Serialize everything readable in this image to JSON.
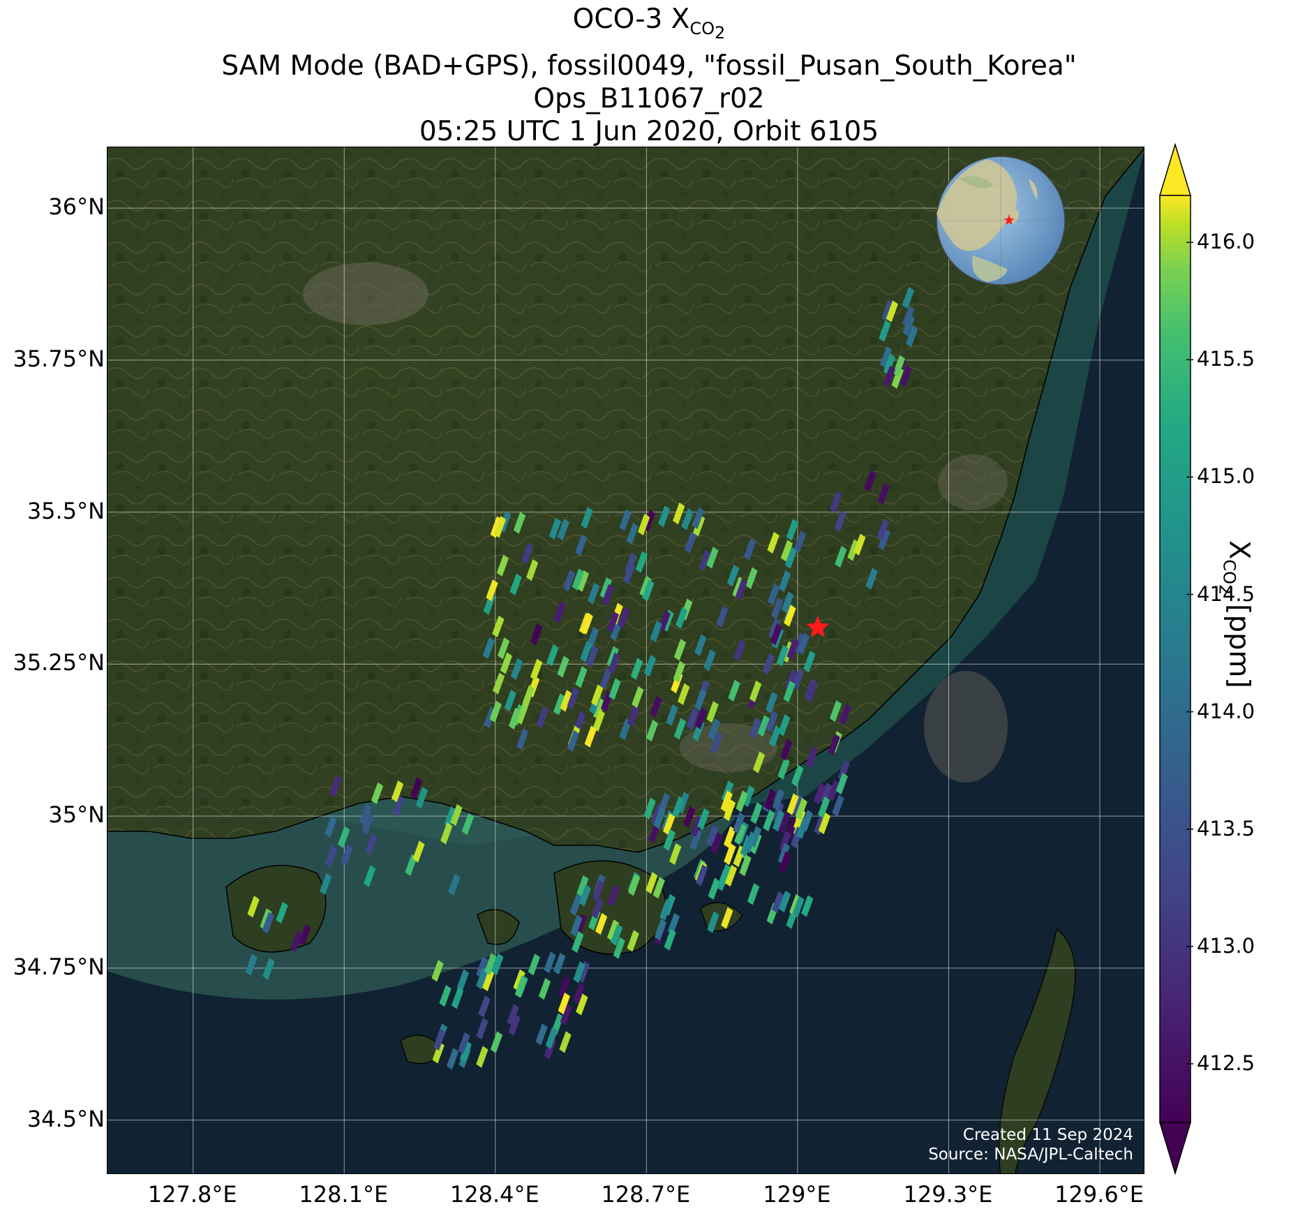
{
  "title": {
    "line1_prefix": "OCO-3 X",
    "line1_sub": "CO",
    "line1_subsub": "2",
    "line2": "SAM Mode (BAD+GPS), fossil0049, \"fossil_Pusan_South_Korea\"",
    "line3": "Ops_B11067_r02",
    "line4": "05:25 UTC 1 Jun 2020, Orbit 6105"
  },
  "map": {
    "lon_range": [
      127.63,
      129.69
    ],
    "lat_range": [
      34.41,
      36.1
    ],
    "lat_ticks": [
      {
        "value": 36.0,
        "label": "36°N"
      },
      {
        "value": 35.75,
        "label": "35.75°N"
      },
      {
        "value": 35.5,
        "label": "35.5°N"
      },
      {
        "value": 35.25,
        "label": "35.25°N"
      },
      {
        "value": 35.0,
        "label": "35°N"
      },
      {
        "value": 34.75,
        "label": "34.75°N"
      },
      {
        "value": 34.5,
        "label": "34.5°N"
      }
    ],
    "lon_ticks": [
      {
        "value": 127.8,
        "label": "127.8°E"
      },
      {
        "value": 128.1,
        "label": "128.1°E"
      },
      {
        "value": 128.4,
        "label": "128.4°E"
      },
      {
        "value": 128.7,
        "label": "128.7°E"
      },
      {
        "value": 129.0,
        "label": "129°E"
      },
      {
        "value": 129.3,
        "label": "129.3°E"
      },
      {
        "value": 129.6,
        "label": "129.6°E"
      }
    ],
    "target": {
      "name": "fossil_Pusan_South_Korea",
      "lon": 129.04,
      "lat": 35.31,
      "marker": "red-star"
    },
    "basemap": "satellite imagery",
    "gridlines": true,
    "inset_globe": {
      "center": "East Asia",
      "marker": "red-star"
    }
  },
  "colorbar": {
    "label_prefix": "X",
    "label_sub": "CO",
    "label_subsub": "2",
    "label_suffix": " [ppm]",
    "vmin": 412.25,
    "vmax": 416.2,
    "colormap": "viridis",
    "extend": "both",
    "ticks": [
      "416.0",
      "415.5",
      "415.0",
      "414.5",
      "414.0",
      "413.5",
      "413.0",
      "412.5"
    ]
  },
  "footprint_clusters": [
    {
      "name": "north-ne",
      "lon": [
        129.17,
        129.23
      ],
      "lat": [
        35.68,
        35.86
      ],
      "n": 14,
      "dx": 0.012,
      "dy": 0.02
    },
    {
      "name": "east-isolated",
      "lon": [
        129.07,
        129.18
      ],
      "lat": [
        35.35,
        35.58
      ],
      "n": 10,
      "dx": 0.012,
      "dy": 0.02
    },
    {
      "name": "central-main",
      "lon": [
        128.38,
        129.03
      ],
      "lat": [
        35.12,
        35.5
      ],
      "n": 150,
      "dx": 0.012,
      "dy": 0.02
    },
    {
      "name": "busan-bay",
      "lon": [
        128.86,
        129.1
      ],
      "lat": [
        34.97,
        35.19
      ],
      "n": 38,
      "dx": 0.012,
      "dy": 0.02
    },
    {
      "name": "coast-west",
      "lon": [
        128.05,
        128.35
      ],
      "lat": [
        34.88,
        35.05
      ],
      "n": 22,
      "dx": 0.012,
      "dy": 0.02
    },
    {
      "name": "island-sw",
      "lon": [
        127.88,
        128.04
      ],
      "lat": [
        34.74,
        34.87
      ],
      "n": 8,
      "dx": 0.012,
      "dy": 0.02
    },
    {
      "name": "geoje-sea",
      "lon": [
        128.7,
        129.02
      ],
      "lat": [
        34.82,
        35.03
      ],
      "n": 60,
      "dx": 0.012,
      "dy": 0.02
    },
    {
      "name": "south-islands",
      "lon": [
        128.55,
        128.75
      ],
      "lat": [
        34.78,
        34.9
      ],
      "n": 22,
      "dx": 0.012,
      "dy": 0.02
    },
    {
      "name": "south-strip",
      "lon": [
        128.28,
        128.58
      ],
      "lat": [
        34.6,
        34.76
      ],
      "n": 42,
      "dx": 0.012,
      "dy": 0.02
    }
  ],
  "credits": {
    "line1": "Created 11 Sep 2024",
    "line2": "Source: NASA/JPL-Caltech"
  }
}
